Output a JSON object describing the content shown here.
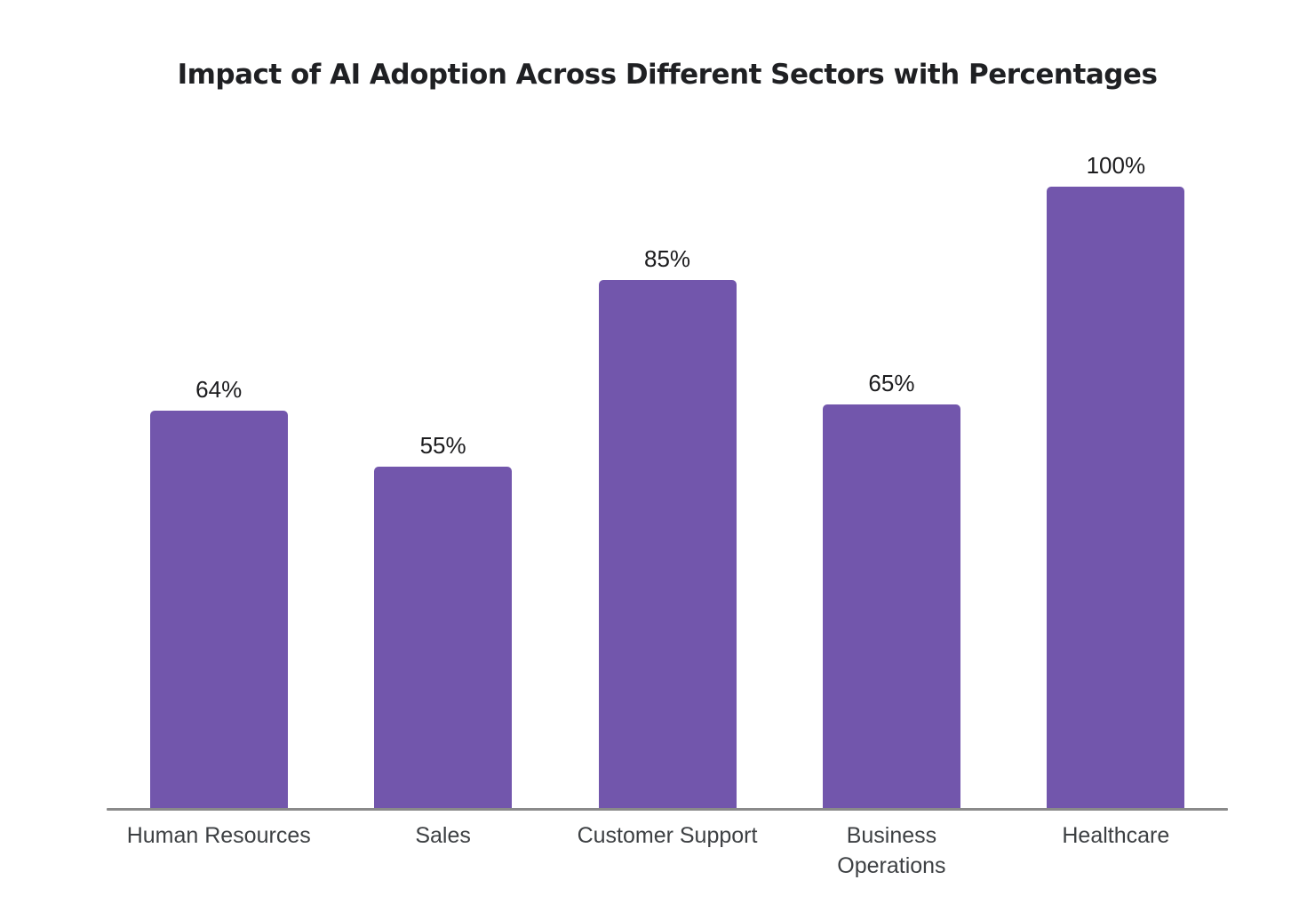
{
  "chart_data": {
    "type": "bar",
    "title": "Impact of AI Adoption Across Different Sectors with Percentages",
    "categories": [
      "Human Resources",
      "Sales",
      "Customer Support",
      "Business Operations",
      "Healthcare"
    ],
    "values": [
      64,
      55,
      85,
      65,
      100
    ],
    "value_labels": [
      "64%",
      "55%",
      "85%",
      "65%",
      "100%"
    ],
    "category_label_lines": [
      [
        "Human Resources"
      ],
      [
        "Sales"
      ],
      [
        "Customer Support"
      ],
      [
        "Business",
        "Operations"
      ],
      [
        "Healthcare"
      ]
    ],
    "xlabel": "",
    "ylabel": "",
    "ylim": [
      0,
      100
    ],
    "grid": false,
    "legend": false,
    "bar_color": "#7256AC",
    "value_label_color": "#1c1c1e",
    "category_label_color": "#3d4043",
    "axis_line_color": "#8a8a8a",
    "title_color": "#1f2023",
    "background": "#ffffff"
  }
}
